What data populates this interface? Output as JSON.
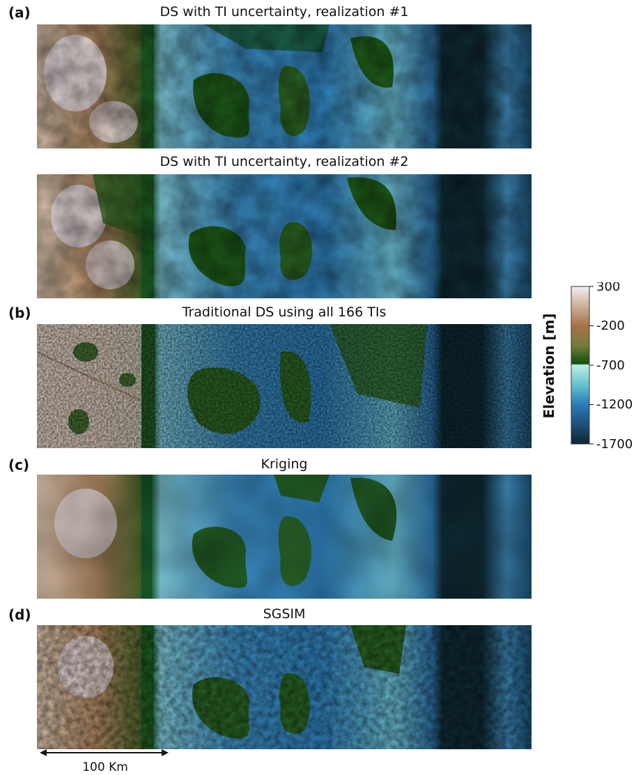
{
  "panels": [
    {
      "label": "(a)",
      "title": "DS with TI uncertainty, realization #1"
    },
    {
      "label": "",
      "title": "DS with TI uncertainty, realization #2"
    },
    {
      "label": "(b)",
      "title": "Traditional DS using all 166 TIs"
    },
    {
      "label": "(c)",
      "title": "Kriging"
    },
    {
      "label": "(d)",
      "title": "SGSIM"
    }
  ],
  "colorbar": {
    "label": "Elevation [m]",
    "ticks": [
      "300",
      "-200",
      "-700",
      "-1200",
      "-1700"
    ],
    "colors": {
      "high": "#f4eef3",
      "mid_high": "#a8714a",
      "land_low": "#0f4e0f",
      "sea_high": "#bfeee3",
      "sea_mid": "#2a7cb8",
      "low": "#0c2730"
    }
  },
  "scale_bar": {
    "label": "100 Km"
  },
  "chart_data": {
    "type": "heatmap",
    "colorbar_range": [
      -1700,
      300
    ],
    "colorbar_ticks": [
      300,
      -200,
      -700,
      -1200,
      -1700
    ],
    "colorbar_label": "Elevation [m]",
    "panels": [
      "DS with TI uncertainty, realization #1",
      "DS with TI uncertainty, realization #2",
      "Traditional DS using all 166 TIs",
      "Kriging",
      "SGSIM"
    ]
  }
}
